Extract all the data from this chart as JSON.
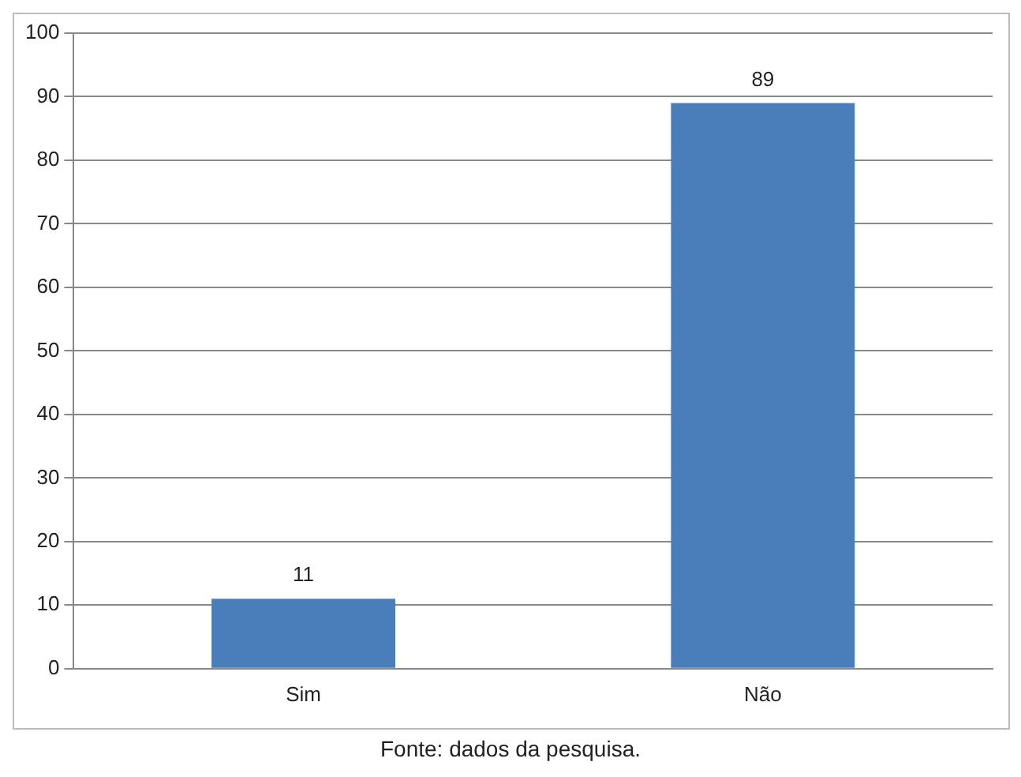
{
  "chart_data": {
    "type": "bar",
    "categories": [
      "Sim",
      "Não"
    ],
    "values": [
      11,
      89
    ],
    "color": "#4a7ebb",
    "ylim": [
      0,
      100
    ],
    "yticks": [
      0,
      10,
      20,
      30,
      40,
      50,
      60,
      70,
      80,
      90,
      100
    ],
    "grid": "y",
    "data_labels": true,
    "annotations": [
      "Fonte: dados da pesquisa."
    ]
  }
}
